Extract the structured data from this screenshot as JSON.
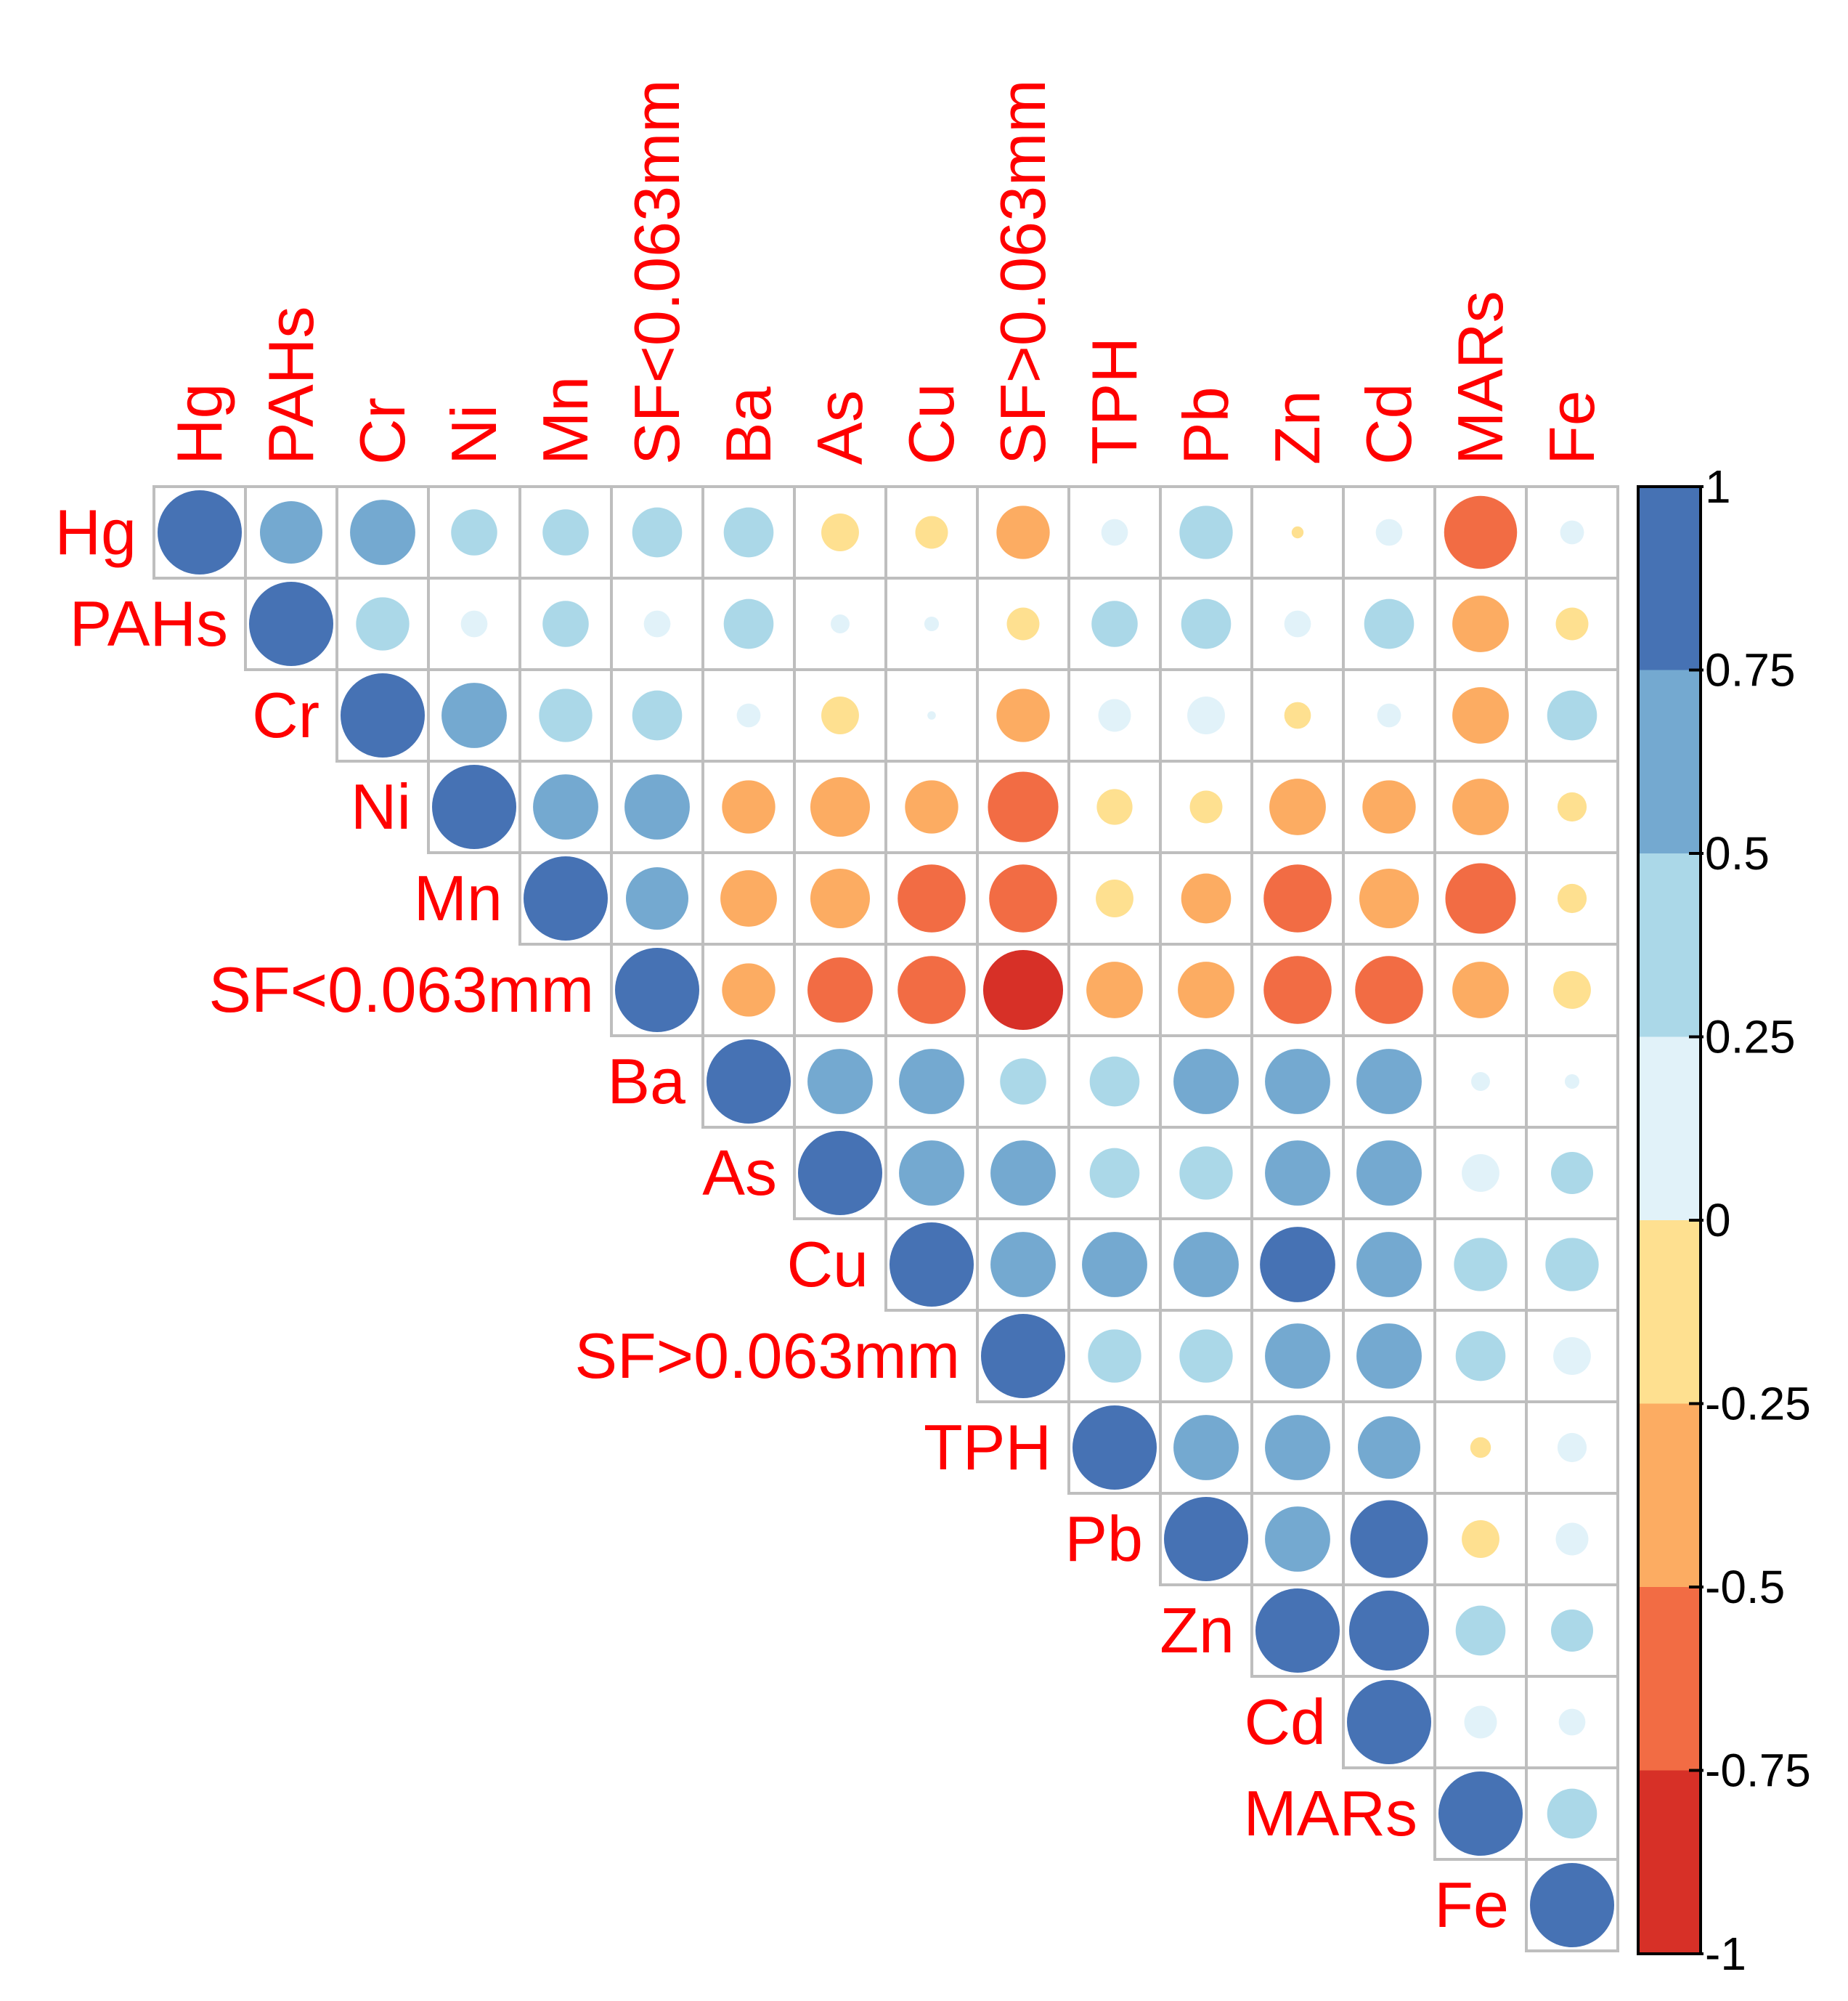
{
  "chart_data": {
    "type": "heatmap",
    "style": "correlogram-upper-circles",
    "variables": [
      "Hg",
      "PAHs",
      "Cr",
      "Ni",
      "Mn",
      "SF<0.063mm",
      "Ba",
      "As",
      "Cu",
      "SF>0.063mm",
      "TPH",
      "Pb",
      "Zn",
      "Cd",
      "MARs",
      "Fe"
    ],
    "matrix": [
      [
        1,
        0.55,
        0.6,
        0.3,
        0.3,
        0.35,
        0.35,
        -0.2,
        -0.15,
        -0.4,
        0.1,
        0.4,
        -0.02,
        0.1,
        -0.75,
        0.08
      ],
      [
        null,
        1,
        0.4,
        0.1,
        0.3,
        0.1,
        0.35,
        0.05,
        0.03,
        -0.15,
        0.3,
        0.35,
        0.1,
        0.35,
        -0.45,
        -0.15
      ],
      [
        null,
        null,
        1,
        0.6,
        0.4,
        0.35,
        0.08,
        -0.2,
        0.01,
        -0.4,
        0.15,
        0.2,
        -0.1,
        0.08,
        -0.45,
        0.35
      ],
      [
        null,
        null,
        null,
        1,
        0.6,
        0.6,
        -0.4,
        -0.5,
        -0.4,
        -0.7,
        -0.18,
        -0.15,
        -0.45,
        -0.4,
        -0.45,
        -0.12
      ],
      [
        null,
        null,
        null,
        null,
        1,
        0.55,
        -0.45,
        -0.5,
        -0.65,
        -0.65,
        -0.2,
        -0.35,
        -0.65,
        -0.5,
        -0.7,
        -0.12
      ],
      [
        null,
        null,
        null,
        null,
        null,
        1,
        -0.4,
        -0.6,
        -0.65,
        -0.9,
        -0.45,
        -0.45,
        -0.65,
        -0.65,
        -0.45,
        -0.2
      ],
      [
        null,
        null,
        null,
        null,
        null,
        null,
        1,
        0.6,
        0.6,
        0.3,
        0.35,
        0.6,
        0.6,
        0.6,
        0.05,
        0.03
      ],
      [
        null,
        null,
        null,
        null,
        null,
        null,
        null,
        1,
        0.6,
        0.6,
        0.35,
        0.4,
        0.6,
        0.6,
        0.2,
        0.25
      ],
      [
        null,
        null,
        null,
        null,
        null,
        null,
        null,
        null,
        1,
        0.6,
        0.6,
        0.6,
        0.8,
        0.6,
        0.4,
        0.4
      ],
      [
        null,
        null,
        null,
        null,
        null,
        null,
        null,
        null,
        null,
        1,
        0.4,
        0.4,
        0.6,
        0.6,
        0.35,
        0.2
      ],
      [
        null,
        null,
        null,
        null,
        null,
        null,
        null,
        null,
        null,
        null,
        1,
        0.6,
        0.6,
        0.55,
        -0.06,
        0.12
      ],
      [
        null,
        null,
        null,
        null,
        null,
        null,
        null,
        null,
        null,
        null,
        null,
        1,
        0.6,
        0.85,
        -0.2,
        0.15
      ],
      [
        null,
        null,
        null,
        null,
        null,
        null,
        null,
        null,
        null,
        null,
        null,
        null,
        1,
        0.9,
        0.35,
        0.25
      ],
      [
        null,
        null,
        null,
        null,
        null,
        null,
        null,
        null,
        null,
        null,
        null,
        null,
        null,
        1,
        0.15,
        0.1
      ],
      [
        null,
        null,
        null,
        null,
        null,
        null,
        null,
        null,
        null,
        null,
        null,
        null,
        null,
        null,
        1,
        0.35
      ],
      [
        null,
        null,
        null,
        null,
        null,
        null,
        null,
        null,
        null,
        null,
        null,
        null,
        null,
        null,
        null,
        1
      ]
    ],
    "colorbar": {
      "ticks": [
        "1",
        "0.75",
        "0.5",
        "0.25",
        "0",
        "-0.25",
        "-0.5",
        "-0.75",
        "-1"
      ],
      "range": [
        -1,
        1
      ],
      "bins": [
        {
          "from": 0.75,
          "to": 1,
          "color": "#4672b4"
        },
        {
          "from": 0.5,
          "to": 0.75,
          "color": "#74a9d0"
        },
        {
          "from": 0.25,
          "to": 0.5,
          "color": "#abd8e8"
        },
        {
          "from": 0,
          "to": 0.25,
          "color": "#e1f2f9"
        },
        {
          "from": -0.25,
          "to": 0,
          "color": "#fee090"
        },
        {
          "from": -0.5,
          "to": -0.25,
          "color": "#fcac62"
        },
        {
          "from": -0.75,
          "to": -0.5,
          "color": "#f26c44"
        },
        {
          "from": -1,
          "to": -0.75,
          "color": "#d73027"
        }
      ]
    },
    "label_color": "#ff0000",
    "grid_color": "#bebebe"
  }
}
